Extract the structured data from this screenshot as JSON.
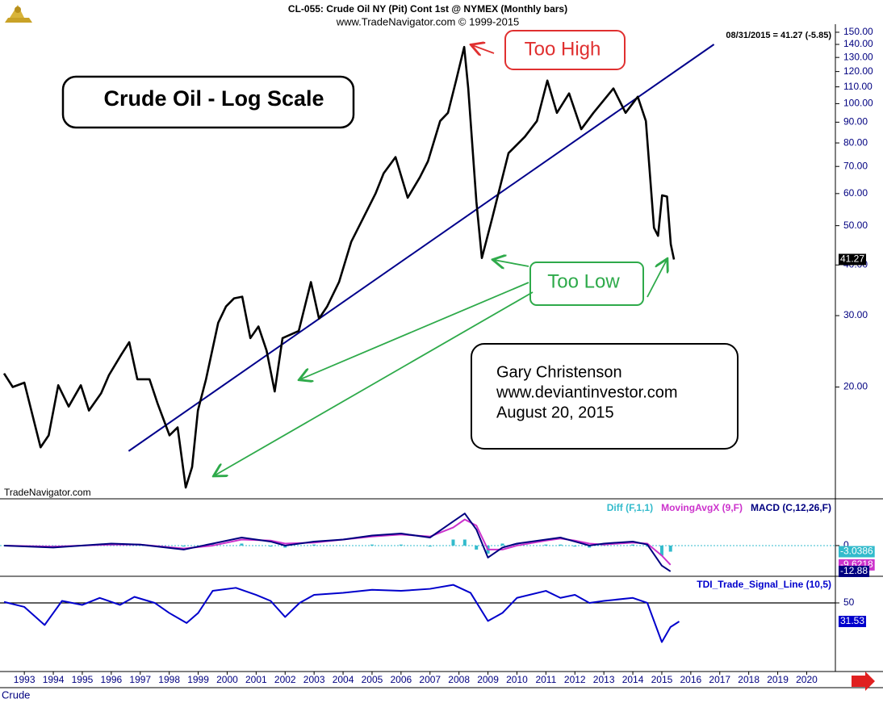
{
  "chart_data": [
    {
      "type": "line",
      "title": "CL-055:  Crude Oil NY (Pit) Cont 1st @ NYMEX  (Monthly bars)",
      "subtitle": "www.TradeNavigator.com © 1999-2015",
      "date_label": "08/31/2015 = 41.27 (-5.85)",
      "watermark": "TradeNavigator.com",
      "symbol": "Crude",
      "annotations": [
        {
          "text": "Crude Oil - Log Scale",
          "color": "#000000"
        },
        {
          "text": "Too High",
          "color": "#e03030"
        },
        {
          "text": "Too Low",
          "color": "#2eaa4a"
        },
        {
          "text": "Gary Christenson",
          "color": "#000000"
        },
        {
          "text": "www.deviantinvestor.com",
          "color": "#000000"
        },
        {
          "text": "August 20, 2015",
          "color": "#000000"
        }
      ],
      "log_scale": true,
      "xlim": [
        1992.16,
        2020.99
      ],
      "xticks": [
        1993,
        1994,
        1995,
        1996,
        1997,
        1998,
        1999,
        2000,
        2001,
        2002,
        2003,
        2004,
        2005,
        2006,
        2007,
        2008,
        2009,
        2010,
        2011,
        2012,
        2013,
        2014,
        2015,
        2016,
        2017,
        2018,
        2019,
        2020
      ],
      "ylim": [
        10.6,
        157
      ],
      "yticks": [
        {
          "value": 150,
          "label": "150.00"
        },
        {
          "value": 140,
          "label": "140.00"
        },
        {
          "value": 130,
          "label": "130.00"
        },
        {
          "value": 120,
          "label": "120.00"
        },
        {
          "value": 110,
          "label": "110.00"
        },
        {
          "value": 100,
          "label": "100.00"
        },
        {
          "value": 90,
          "label": "90.00"
        },
        {
          "value": 80,
          "label": "80.00"
        },
        {
          "value": 70,
          "label": "70.00"
        },
        {
          "value": 60,
          "label": "60.00"
        },
        {
          "value": 50,
          "label": "50.00"
        },
        {
          "value": 40,
          "label": "40.00"
        },
        {
          "value": 30,
          "label": "30.00"
        },
        {
          "value": 20,
          "label": "20.00"
        }
      ],
      "series": [
        {
          "color": "#000000",
          "style": "line",
          "x": [
            1992.3,
            1992.6,
            1993.0,
            1993.56,
            1993.84,
            1994.17,
            1994.53,
            1994.95,
            1995.23,
            1995.65,
            1995.92,
            1996.34,
            1996.62,
            1996.9,
            1997.32,
            1997.6,
            1998.01,
            1998.29,
            1998.57,
            1998.79,
            1998.99,
            1999.27,
            1999.69,
            1999.96,
            2000.24,
            2000.52,
            2000.8,
            2001.08,
            2001.36,
            2001.64,
            2001.91,
            2002.47,
            2002.89,
            2003.17,
            2003.45,
            2003.86,
            2004.28,
            2004.7,
            2005.12,
            2005.4,
            2005.81,
            2006.23,
            2006.65,
            2006.93,
            2007.35,
            2007.62,
            2007.9,
            2008.18,
            2008.32,
            2008.6,
            2008.79,
            2009.15,
            2009.71,
            2010.27,
            2010.69,
            2011.05,
            2011.38,
            2011.8,
            2012.22,
            2012.64,
            2013.33,
            2013.75,
            2014.17,
            2014.45,
            2014.73,
            2014.87,
            2015.01,
            2015.18,
            2015.31,
            2015.42
          ],
          "values": [
            21.6,
            20.0,
            20.5,
            14.2,
            15.2,
            20.2,
            17.9,
            20.2,
            17.5,
            19.3,
            21.4,
            24.0,
            25.8,
            20.9,
            20.9,
            18.2,
            15.2,
            15.9,
            11.3,
            12.7,
            17.5,
            20.9,
            28.8,
            31.6,
            33.1,
            33.4,
            26.4,
            28.2,
            24.6,
            19.5,
            26.4,
            27.5,
            36.3,
            29.5,
            31.6,
            36.3,
            45.6,
            52.3,
            60.0,
            67.3,
            73.8,
            58.6,
            65.8,
            72.1,
            90.6,
            94.9,
            114,
            138,
            109,
            57.4,
            41.6,
            52.3,
            75.5,
            82.8,
            90.6,
            114,
            94.9,
            106,
            86.5,
            94.9,
            109,
            94.9,
            104,
            90.6,
            49.4,
            47.2,
            59.4,
            59.0,
            45.0,
            41.27
          ]
        }
      ],
      "trendline": {
        "color": "#00008b",
        "x": [
          1996.6,
          2016.8
        ],
        "values": [
          13.9,
          140
        ]
      }
    },
    {
      "type": "line",
      "ylim": [
        -14.5,
        22.5
      ],
      "yticks": [
        0
      ],
      "series": [
        {
          "name": "Diff (F,1,1)",
          "color": "#33bbcc",
          "style": "bar",
          "x": [
            1992.3,
            1994,
            1996,
            1997,
            1998.5,
            1999.5,
            2000.5,
            2001.5,
            2002,
            2003,
            2004,
            2005,
            2006,
            2007,
            2007.8,
            2008.2,
            2008.6,
            2009,
            2009.5,
            2010,
            2011,
            2011.5,
            2012,
            2012.5,
            2013,
            2014,
            2014.5,
            2015,
            2015.3
          ],
          "values": [
            0,
            -0.5,
            0.5,
            0,
            -0.5,
            1,
            1,
            -0.5,
            -1,
            0.5,
            0,
            0.5,
            0.5,
            -0.5,
            3,
            3,
            -2,
            -4,
            1,
            1,
            0.5,
            0.5,
            -0.5,
            -1,
            0.5,
            0.5,
            -0.5,
            -5,
            -3.0386
          ]
        },
        {
          "name": "MovingAvgX (9,F)",
          "color": "#cc33cc",
          "style": "line",
          "x": [
            1992.3,
            1994,
            1996,
            1997,
            1998.5,
            1999.5,
            2000.5,
            2001.5,
            2002,
            2003,
            2004,
            2005,
            2006,
            2007,
            2007.8,
            2008.2,
            2008.6,
            2009,
            2009.5,
            2010,
            2011,
            2011.5,
            2012,
            2012.5,
            2013,
            2014,
            2014.5,
            2015,
            2015.3
          ],
          "values": [
            0,
            -0.5,
            0.5,
            0.5,
            -1.5,
            0,
            3,
            2.5,
            1,
            1.5,
            3,
            4.5,
            5.5,
            4.5,
            9,
            13,
            10,
            -2,
            -2,
            0,
            2.5,
            3.5,
            2.5,
            1,
            0.5,
            1.5,
            1,
            -5,
            -9.6218
          ]
        },
        {
          "name": "MACD (C,12,26,F)",
          "color": "#000080",
          "style": "line",
          "x": [
            1992.3,
            1994,
            1996,
            1997,
            1998.5,
            1999.5,
            2000.5,
            2001.5,
            2002,
            2003,
            2004,
            2005,
            2006,
            2007,
            2007.8,
            2008.2,
            2008.6,
            2009,
            2009.5,
            2010,
            2011,
            2011.5,
            2012,
            2012.5,
            2013,
            2014,
            2014.5,
            2015,
            2015.3
          ],
          "values": [
            0,
            -1,
            1,
            0.5,
            -2,
            1,
            4,
            2,
            0,
            2,
            3,
            5,
            6,
            4,
            12,
            16,
            8,
            -6,
            -1,
            1,
            3,
            4,
            2,
            0,
            1,
            2,
            0.5,
            -10,
            -12.88
          ]
        }
      ]
    },
    {
      "type": "line",
      "ylim": [
        -16.7,
        75.7
      ],
      "yticks": [
        50
      ],
      "series": [
        {
          "name": "TDI_Trade_Signal_Line (10,5)",
          "color": "#0000cc",
          "style": "line",
          "x": [
            1992.3,
            1993,
            1993.7,
            1994.3,
            1995,
            1995.6,
            1996.3,
            1996.8,
            1997.5,
            1998,
            1998.6,
            1999,
            1999.5,
            2000.3,
            2001,
            2001.5,
            2002,
            2002.5,
            2003,
            2004,
            2005,
            2006,
            2007,
            2007.8,
            2008.4,
            2009,
            2009.5,
            2010,
            2011,
            2011.5,
            2012,
            2012.5,
            2013,
            2014,
            2014.5,
            2015,
            2015.3,
            2015.6
          ],
          "values": [
            51,
            46,
            28,
            52,
            48,
            55,
            48,
            56,
            50,
            40,
            30,
            40,
            62,
            65,
            58,
            52,
            36,
            50,
            58,
            60,
            63,
            62,
            64,
            68,
            60,
            32,
            40,
            55,
            62,
            55,
            58,
            50,
            52,
            55,
            50,
            11,
            26,
            31.53
          ]
        }
      ]
    }
  ]
}
